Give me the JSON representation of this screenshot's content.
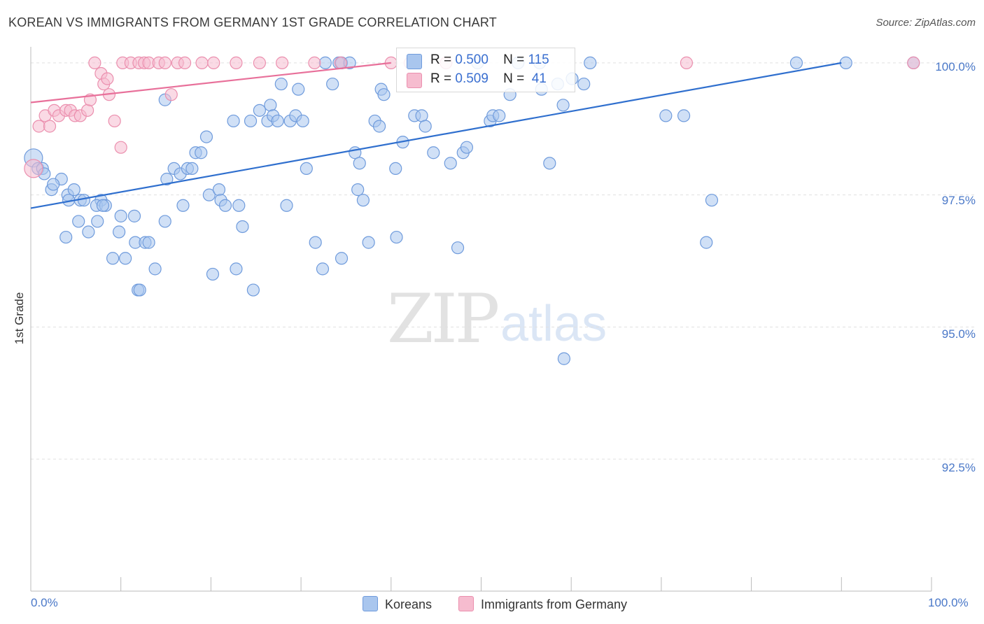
{
  "title": "KOREAN VS IMMIGRANTS FROM GERMANY 1ST GRADE CORRELATION CHART",
  "source": "Source: ZipAtlas.com",
  "watermark": {
    "zip": "ZIP",
    "atlas": "atlas"
  },
  "legend": {
    "koreans": {
      "r_label": "R =",
      "r_value": "0.500",
      "n_label": "N =",
      "n_value": "115"
    },
    "germany": {
      "r_label": "R =",
      "r_value": "0.509",
      "n_label": "N =",
      "n_value": "41"
    }
  },
  "colors": {
    "koreans_fill": "#a9c6ee",
    "koreans_stroke": "#6f9bdc",
    "koreans_line": "#2f6fce",
    "germany_fill": "#f6bccf",
    "germany_stroke": "#eb8fae",
    "germany_line": "#e8709a",
    "tick_text": "#4a78c8",
    "grid": "#e0e0e0"
  },
  "chart_data": {
    "type": "scatter",
    "title": "KOREAN VS IMMIGRANTS FROM GERMANY 1ST GRADE CORRELATION CHART",
    "xlabel": "",
    "ylabel": "1st Grade",
    "xlim": [
      0,
      100
    ],
    "ylim": [
      90.0,
      100.25
    ],
    "x_tick_labels": [
      "0.0%",
      "100.0%"
    ],
    "y_ticks": [
      100.0,
      97.5,
      95.0,
      92.5
    ],
    "y_tick_labels": [
      "100.0%",
      "97.5%",
      "95.0%",
      "92.5%"
    ],
    "grid": true,
    "series": [
      {
        "name": "Koreans",
        "trend": {
          "x": [
            0,
            90
          ],
          "y": [
            97.25,
            100.0
          ]
        },
        "points": [
          [
            0.3,
            98.2
          ],
          [
            0.8,
            98.0
          ],
          [
            1.3,
            98.0
          ],
          [
            1.5,
            97.9
          ],
          [
            2.3,
            97.6
          ],
          [
            3.4,
            97.8
          ],
          [
            2.5,
            97.7
          ],
          [
            4.1,
            97.5
          ],
          [
            4.8,
            97.6
          ],
          [
            4.2,
            97.4
          ],
          [
            5.5,
            97.4
          ],
          [
            5.9,
            97.4
          ],
          [
            7.8,
            97.4
          ],
          [
            7.3,
            97.3
          ],
          [
            8.3,
            97.3
          ],
          [
            8.0,
            97.3
          ],
          [
            5.3,
            97.0
          ],
          [
            7.4,
            97.0
          ],
          [
            10.0,
            97.1
          ],
          [
            11.5,
            97.1
          ],
          [
            3.9,
            96.7
          ],
          [
            6.4,
            96.8
          ],
          [
            9.8,
            96.8
          ],
          [
            11.6,
            96.6
          ],
          [
            12.7,
            96.6
          ],
          [
            13.1,
            96.6
          ],
          [
            9.1,
            96.3
          ],
          [
            10.5,
            96.3
          ],
          [
            13.8,
            96.1
          ],
          [
            11.9,
            95.7
          ],
          [
            12.1,
            95.7
          ],
          [
            14.9,
            97.0
          ],
          [
            15.1,
            97.8
          ],
          [
            15.9,
            98.0
          ],
          [
            16.6,
            97.9
          ],
          [
            16.9,
            97.3
          ],
          [
            17.4,
            98.0
          ],
          [
            17.9,
            98.0
          ],
          [
            18.3,
            98.3
          ],
          [
            18.9,
            98.3
          ],
          [
            19.5,
            98.6
          ],
          [
            19.8,
            97.5
          ],
          [
            20.9,
            97.6
          ],
          [
            21.1,
            97.4
          ],
          [
            21.6,
            97.3
          ],
          [
            20.2,
            96.0
          ],
          [
            23.1,
            97.3
          ],
          [
            23.5,
            96.9
          ],
          [
            22.8,
            96.1
          ],
          [
            24.7,
            95.7
          ],
          [
            14.9,
            99.3
          ],
          [
            22.5,
            98.9
          ],
          [
            24.4,
            98.9
          ],
          [
            25.4,
            99.1
          ],
          [
            26.3,
            98.9
          ],
          [
            26.6,
            99.2
          ],
          [
            26.9,
            99.0
          ],
          [
            27.4,
            98.9
          ],
          [
            27.8,
            99.6
          ],
          [
            28.4,
            97.3
          ],
          [
            28.8,
            98.9
          ],
          [
            29.4,
            99.0
          ],
          [
            29.7,
            99.5
          ],
          [
            30.2,
            98.9
          ],
          [
            30.6,
            98.0
          ],
          [
            31.6,
            96.6
          ],
          [
            32.4,
            96.1
          ],
          [
            32.7,
            100.0
          ],
          [
            33.5,
            99.6
          ],
          [
            34.2,
            100.0
          ],
          [
            34.5,
            100.0
          ],
          [
            34.5,
            96.3
          ],
          [
            35.4,
            100.0
          ],
          [
            36.0,
            98.3
          ],
          [
            36.3,
            97.6
          ],
          [
            36.5,
            98.1
          ],
          [
            36.9,
            97.4
          ],
          [
            37.5,
            96.6
          ],
          [
            38.2,
            98.9
          ],
          [
            38.7,
            98.8
          ],
          [
            38.9,
            99.5
          ],
          [
            39.2,
            99.4
          ],
          [
            40.5,
            98.0
          ],
          [
            40.6,
            96.7
          ],
          [
            41.3,
            98.5
          ],
          [
            42.6,
            99.0
          ],
          [
            43.4,
            99.0
          ],
          [
            43.8,
            98.8
          ],
          [
            44.7,
            98.3
          ],
          [
            46.6,
            98.1
          ],
          [
            47.4,
            96.5
          ],
          [
            48.0,
            98.3
          ],
          [
            48.4,
            98.4
          ],
          [
            49.6,
            100.0
          ],
          [
            51.0,
            98.9
          ],
          [
            51.3,
            99.0
          ],
          [
            52.0,
            99.0
          ],
          [
            53.2,
            99.4
          ],
          [
            54.1,
            100.0
          ],
          [
            56.5,
            100.0
          ],
          [
            56.7,
            99.5
          ],
          [
            58.5,
            99.6
          ],
          [
            59.1,
            99.2
          ],
          [
            60.1,
            99.7
          ],
          [
            61.4,
            99.6
          ],
          [
            62.1,
            100.0
          ],
          [
            70.5,
            99.0
          ],
          [
            72.5,
            99.0
          ],
          [
            75.0,
            96.6
          ],
          [
            75.6,
            97.4
          ],
          [
            57.6,
            98.1
          ],
          [
            59.2,
            94.4
          ],
          [
            85.0,
            100.0
          ],
          [
            90.5,
            100.0
          ],
          [
            98.0,
            100.0
          ]
        ]
      },
      {
        "name": "Immigrants from Germany",
        "trend": {
          "x": [
            0,
            40
          ],
          "y": [
            99.25,
            100.0
          ]
        },
        "points": [
          [
            0.3,
            98.0
          ],
          [
            0.9,
            98.8
          ],
          [
            1.6,
            99.0
          ],
          [
            2.1,
            98.8
          ],
          [
            2.6,
            99.1
          ],
          [
            3.1,
            99.0
          ],
          [
            3.9,
            99.1
          ],
          [
            4.4,
            99.1
          ],
          [
            4.9,
            99.0
          ],
          [
            5.5,
            99.0
          ],
          [
            6.3,
            99.1
          ],
          [
            6.6,
            99.3
          ],
          [
            7.1,
            100.0
          ],
          [
            7.8,
            99.8
          ],
          [
            8.1,
            99.6
          ],
          [
            8.5,
            99.7
          ],
          [
            8.7,
            99.4
          ],
          [
            9.3,
            98.9
          ],
          [
            10.0,
            98.4
          ],
          [
            10.2,
            100.0
          ],
          [
            11.1,
            100.0
          ],
          [
            12.0,
            100.0
          ],
          [
            12.6,
            100.0
          ],
          [
            13.1,
            100.0
          ],
          [
            14.2,
            100.0
          ],
          [
            14.9,
            100.0
          ],
          [
            15.6,
            99.4
          ],
          [
            16.3,
            100.0
          ],
          [
            17.1,
            100.0
          ],
          [
            19.0,
            100.0
          ],
          [
            20.3,
            100.0
          ],
          [
            22.8,
            100.0
          ],
          [
            25.4,
            100.0
          ],
          [
            27.9,
            100.0
          ],
          [
            31.5,
            100.0
          ],
          [
            34.4,
            100.0
          ],
          [
            40.0,
            100.0
          ],
          [
            42.1,
            100.0
          ],
          [
            46.1,
            100.0
          ],
          [
            72.8,
            100.0
          ],
          [
            98.0,
            100.0
          ]
        ]
      }
    ]
  }
}
